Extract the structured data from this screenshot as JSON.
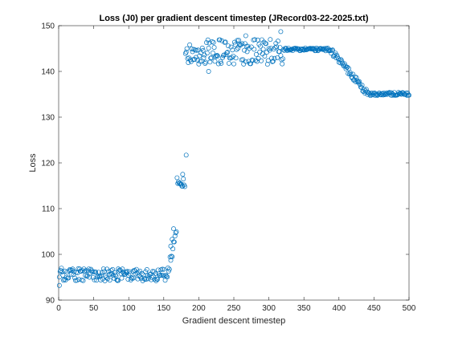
{
  "chart_data": {
    "type": "scatter",
    "title": "Loss (J0) per gradient descent timestep (JRecord03-22-2025.txt)",
    "xlabel": "Gradient descent timestep",
    "ylabel": "Loss",
    "xlim": [
      0,
      500
    ],
    "ylim": [
      90,
      150
    ],
    "xticks": [
      "0",
      "50",
      "100",
      "150",
      "200",
      "250",
      "300",
      "350",
      "400",
      "450",
      "500"
    ],
    "yticks": [
      "90",
      "100",
      "110",
      "120",
      "130",
      "140",
      "150"
    ],
    "grid": false,
    "legend": "none",
    "marker": "open-circle",
    "colors": {
      "marker": "#0072BD",
      "axis": "#262626"
    },
    "segments": [
      {
        "name": "initial plateau",
        "x_range": [
          1,
          155
        ],
        "y_center": 95.6,
        "y_spread": 1.4
      },
      {
        "name": "first rise",
        "x_range": [
          156,
          168
        ],
        "y_center": 99.5,
        "y_spread": 3.5
      },
      {
        "name": "intermediate cluster",
        "x_range": [
          169,
          180
        ],
        "y_center": 115.8,
        "y_spread": 1.3
      },
      {
        "name": "noisy high plateau",
        "x_range": [
          181,
          320
        ],
        "y_center": 144.3,
        "y_spread": 2.8
      },
      {
        "name": "flat high plateau",
        "x_range": [
          321,
          388
        ],
        "y_center": 144.8,
        "y_spread": 0.3
      },
      {
        "name": "descent",
        "x_range": [
          389,
          440
        ],
        "y_center": 139.5,
        "y_spread": 1.0
      },
      {
        "name": "low plateau",
        "x_range": [
          441,
          500
        ],
        "y_center": 135.0,
        "y_spread": 0.4
      }
    ],
    "notable_points": [
      {
        "x": 182,
        "y": 121.7
      },
      {
        "x": 177,
        "y": 117.5
      },
      {
        "x": 164,
        "y": 105.6
      },
      {
        "x": 162,
        "y": 103.3
      },
      {
        "x": 160,
        "y": 101.8
      },
      {
        "x": 317,
        "y": 148.7
      },
      {
        "x": 267,
        "y": 147.8
      },
      {
        "x": 214,
        "y": 140.0
      },
      {
        "x": 1,
        "y": 93.2
      },
      {
        "x": 85,
        "y": 94.3
      }
    ]
  }
}
